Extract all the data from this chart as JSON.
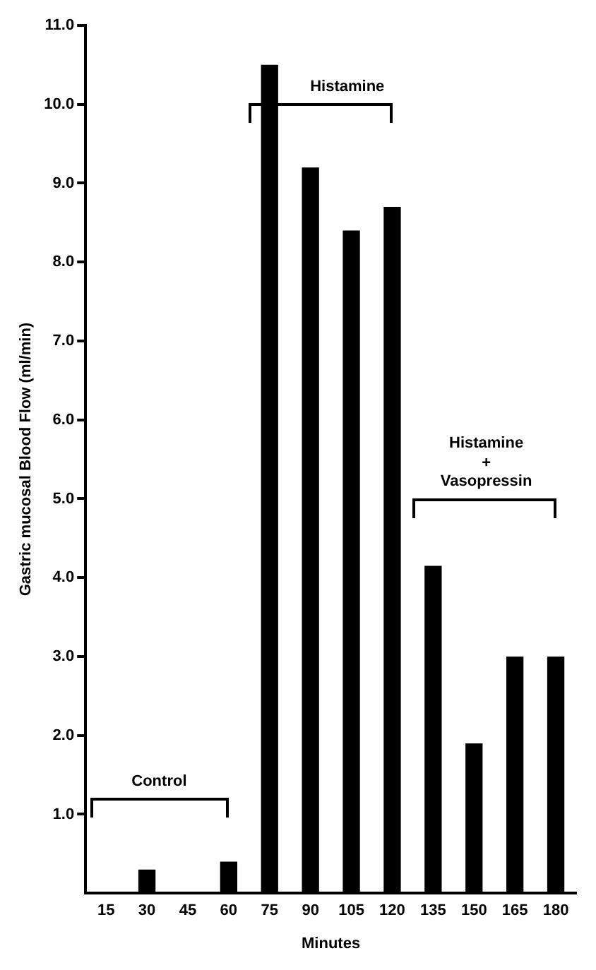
{
  "chart_data": {
    "type": "bar",
    "categories": [
      "15",
      "30",
      "45",
      "60",
      "75",
      "90",
      "105",
      "120",
      "135",
      "150",
      "165",
      "180"
    ],
    "values": [
      0,
      0.3,
      0,
      0.4,
      10.5,
      9.2,
      8.4,
      8.7,
      4.15,
      1.9,
      3.0,
      3.0
    ],
    "color": "#000000",
    "xlabel": "Minutes",
    "ylabel": "Gastric mucosal Blood Flow (ml/min)",
    "ylim": [
      0,
      11
    ],
    "yticks": [
      {
        "value": 1,
        "label": "1.0"
      },
      {
        "value": 2,
        "label": "2.0"
      },
      {
        "value": 3,
        "label": "3.0"
      },
      {
        "value": 4,
        "label": "4.0"
      },
      {
        "value": 5,
        "label": "5.0"
      },
      {
        "value": 6,
        "label": "6.0"
      },
      {
        "value": 7,
        "label": "7.0"
      },
      {
        "value": 8,
        "label": "8.0"
      },
      {
        "value": 9,
        "label": "9.0"
      },
      {
        "value": 10,
        "label": "10.0"
      },
      {
        "value": 11,
        "label": "11.0"
      }
    ],
    "grid": false,
    "legend": false,
    "annotations": [
      "Control",
      "Histamine",
      "Histamine\n+\nVasopressin"
    ]
  }
}
